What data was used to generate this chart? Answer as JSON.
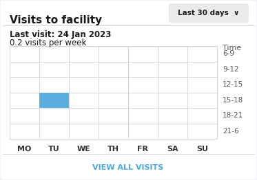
{
  "title": "Visits to facility",
  "button_text": "Last 30 days ∨",
  "subtitle_line1": "Last visit: 24 Jan 2023",
  "subtitle_line2": "0.2 visits per week",
  "days": [
    "MO",
    "TU",
    "WE",
    "TH",
    "FR",
    "SA",
    "SU"
  ],
  "time_labels": [
    "6-9",
    "9-12",
    "12-15",
    "15-18",
    "18-21",
    "21-6"
  ],
  "time_label_header": "Time",
  "highlight_day": 1,
  "highlight_time_row": 3,
  "highlight_color": "#5aafe0",
  "grid_line_color": "#d0d8e0",
  "bg_color": "#ffffff",
  "outer_bg_color": "#f0f2f5",
  "footer_text": "VIEW ALL VISITS",
  "footer_color": "#4aabe0",
  "title_fontsize": 11,
  "subtitle_fontsize": 8.5,
  "axis_fontsize": 8,
  "footer_fontsize": 8
}
